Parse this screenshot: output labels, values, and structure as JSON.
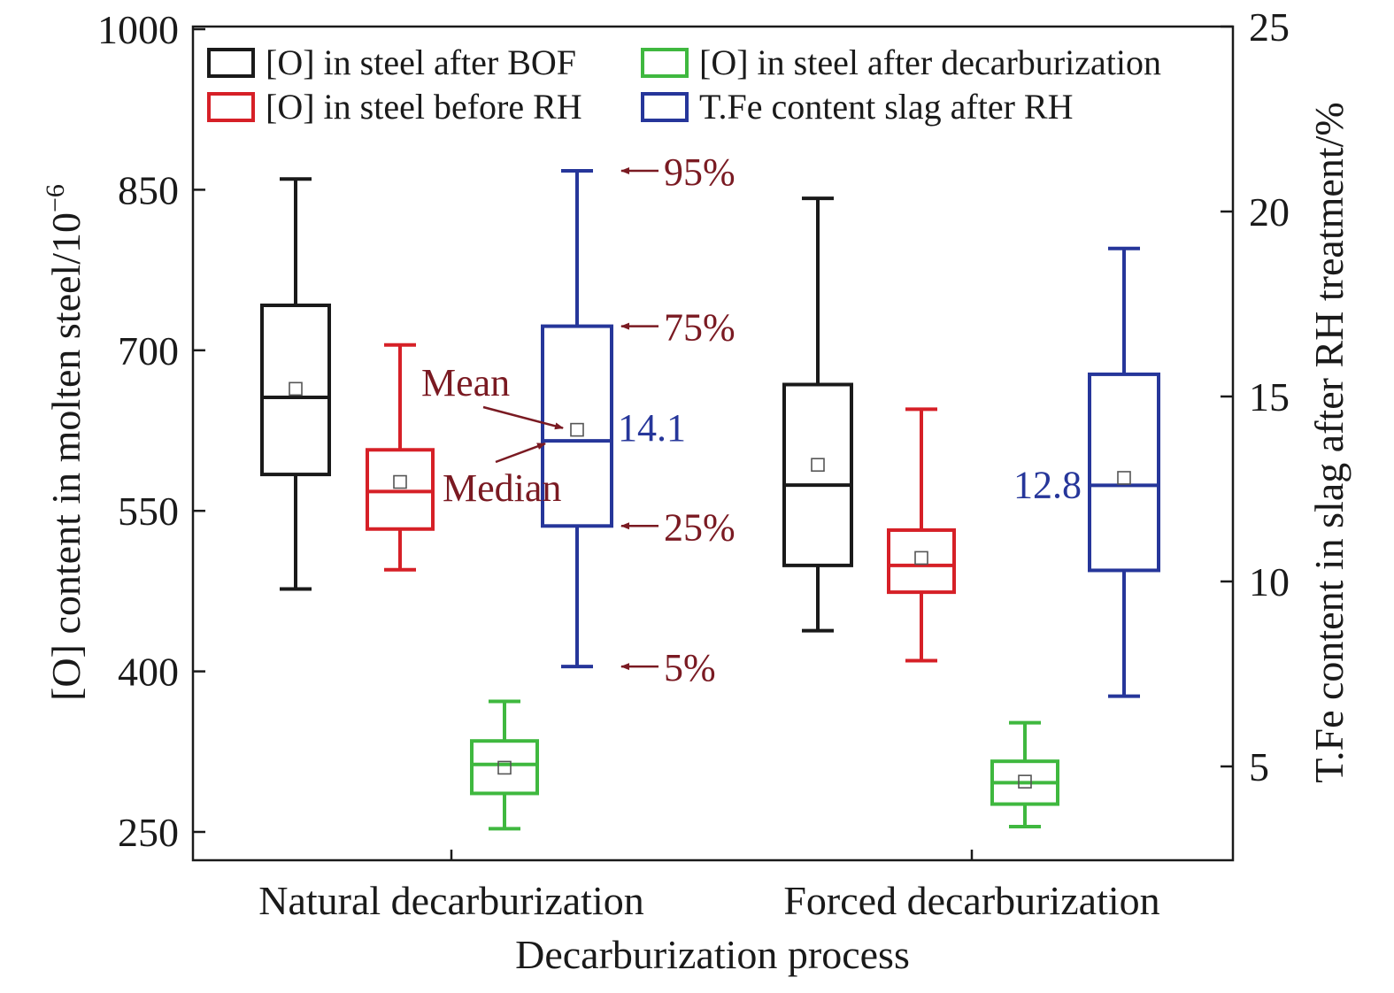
{
  "chart_data": {
    "type": "box",
    "xlabel": "Decarburization process",
    "ylabel_left": "[O] content in molten steel/10",
    "ylabel_left_exponent": "−6",
    "ylabel_right": "T.Fe content in slag after RH treatment/%",
    "categories": [
      "Natural decarburization",
      "Forced decarburization"
    ],
    "y_left": {
      "ticks": [
        "1000",
        "850",
        "700",
        "550",
        "400",
        "250"
      ],
      "range": [
        222,
        1000
      ]
    },
    "y_right": {
      "ticks": [
        "25",
        "20",
        "15",
        "10",
        "5"
      ],
      "range": [
        2.5,
        25
      ]
    },
    "legend": {
      "position": "top",
      "grid": false
    },
    "series": [
      {
        "name": "[O] in steel after BOF",
        "color": "#1a1a1a",
        "axis": "left",
        "boxes": [
          {
            "category": "Natural decarburization",
            "p5": 477,
            "p25": 584,
            "median": 656,
            "p75": 742,
            "p95": 860,
            "mean": 664
          },
          {
            "category": "Forced decarburization",
            "p5": 438,
            "p25": 499,
            "median": 574,
            "p75": 668,
            "p95": 842,
            "mean": 593
          }
        ]
      },
      {
        "name": "[O] in steel before RH",
        "color": "#d62027",
        "axis": "left",
        "boxes": [
          {
            "category": "Natural decarburization",
            "p5": 495,
            "p25": 533,
            "median": 568,
            "p75": 607,
            "p95": 705,
            "mean": 577
          },
          {
            "category": "Forced decarburization",
            "p5": 410,
            "p25": 474,
            "median": 499,
            "p75": 532,
            "p95": 645,
            "mean": 506
          }
        ]
      },
      {
        "name": "[O] in steel after decarburization",
        "color": "#3fb83f",
        "axis": "left",
        "boxes": [
          {
            "category": "Natural decarburization",
            "p5": 253,
            "p25": 286,
            "median": 313,
            "p75": 335,
            "p95": 372,
            "mean": 310
          },
          {
            "category": "Forced decarburization",
            "p5": 255,
            "p25": 276,
            "median": 296,
            "p75": 316,
            "p95": 352,
            "mean": 297
          }
        ]
      },
      {
        "name": "T.Fe content slag after RH",
        "color": "#26369a",
        "axis": "right",
        "boxes": [
          {
            "category": "Natural decarburization",
            "p5": 7.7,
            "p25": 11.5,
            "median": 13.8,
            "p75": 16.9,
            "p95": 21.1,
            "mean": 14.1,
            "value_label": "14.1"
          },
          {
            "category": "Forced decarburization",
            "p5": 6.9,
            "p25": 10.3,
            "median": 12.6,
            "p75": 15.6,
            "p95": 19.0,
            "mean": 12.8,
            "value_label": "12.8"
          }
        ]
      }
    ],
    "annotations": {
      "color": "#7a1a22",
      "p95": "95%",
      "p75": "75%",
      "p25": "25%",
      "p5": "5%",
      "mean": "Mean",
      "median": "Median"
    }
  }
}
